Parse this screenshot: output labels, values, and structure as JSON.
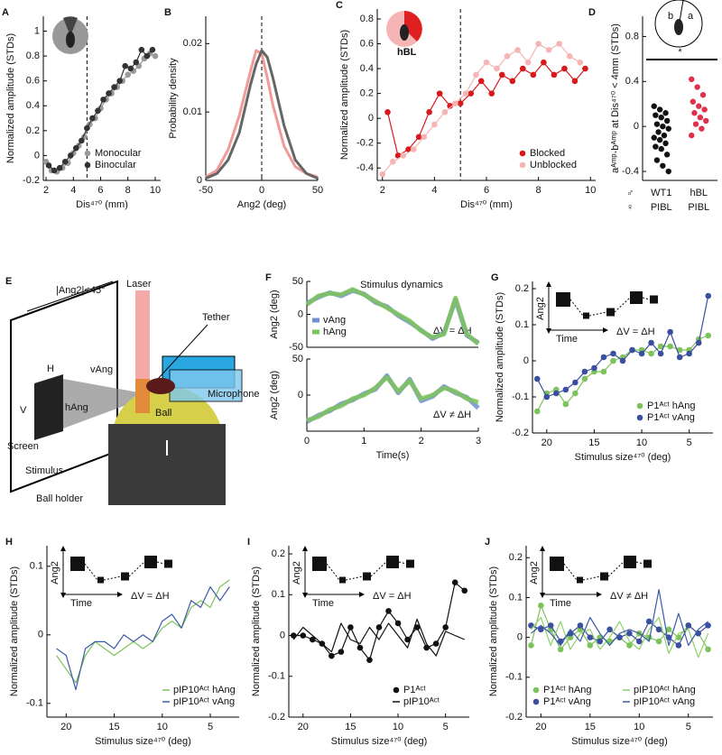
{
  "diagram_e": {
    "panel": "E",
    "angle": "|Ang2|<45°",
    "laser": "Laser",
    "tether": "Tether",
    "h": "H",
    "vang": "vAng",
    "v": "V",
    "hang": "hAng",
    "microphone": "Microphone",
    "screen": "Screen",
    "stimulus": "Stimulus",
    "ball": "Ball",
    "ball_holder": "Ball holder"
  },
  "chart_data": [
    {
      "type": "line",
      "panel": "A",
      "xlabel": "Dis⁴⁷⁰ (mm)",
      "ylabel": "Normalized amplitude (STDs)",
      "xlim": [
        1.8,
        10.4
      ],
      "ylim": [
        -0.2,
        1.12
      ],
      "xticks": [
        2,
        4,
        6,
        8,
        10
      ],
      "yticks": [
        -0.2,
        0,
        0.2,
        0.4,
        0.6,
        0.8,
        1
      ],
      "vline": 5,
      "legend": "lower right",
      "series": [
        {
          "name": "Monocular",
          "color": "#9a9a9a",
          "markers": true,
          "x": [
            2,
            2.4,
            2.8,
            3.2,
            3.6,
            4,
            4.4,
            4.8,
            5.2,
            5.6,
            6,
            6.4,
            6.8,
            7.2,
            7.6,
            8,
            8.4,
            8.8,
            9.2,
            9.6,
            10
          ],
          "values": [
            -0.05,
            -0.12,
            -0.13,
            -0.1,
            -0.06,
            0.02,
            0.08,
            0.15,
            0.25,
            0.3,
            0.38,
            0.45,
            0.5,
            0.55,
            0.6,
            0.65,
            0.68,
            0.72,
            0.78,
            0.82,
            0.8
          ]
        },
        {
          "name": "Binocular",
          "color": "#333333",
          "markers": true,
          "x": [
            2.2,
            2.6,
            3,
            3.4,
            3.8,
            4.2,
            4.6,
            5,
            5.4,
            5.8,
            6.2,
            6.6,
            7,
            7.4,
            7.8,
            8.2,
            8.6,
            9,
            9.4,
            9.8
          ],
          "values": [
            -0.08,
            -0.12,
            -0.1,
            -0.05,
            0,
            0.06,
            0.12,
            0.22,
            0.3,
            0.36,
            0.45,
            0.5,
            0.55,
            0.6,
            0.72,
            0.7,
            0.75,
            0.85,
            0.8,
            0.85
          ]
        }
      ]
    },
    {
      "type": "density",
      "panel": "B",
      "xlabel": "Ang2 (deg)",
      "ylabel": "Probability density",
      "xlim": [
        -50,
        50
      ],
      "ylim": [
        0,
        0.024
      ],
      "xticks": [
        -50,
        0,
        50
      ],
      "yticks": [
        0,
        0.01,
        0.02
      ],
      "vline": 0,
      "x": [
        -50,
        -40,
        -30,
        -20,
        -10,
        -5,
        0,
        5,
        10,
        20,
        30,
        40,
        50
      ],
      "series": [
        {
          "color": "#f09a9a",
          "values": [
            0.0005,
            0.0015,
            0.0045,
            0.0095,
            0.016,
            0.019,
            0.0185,
            0.015,
            0.011,
            0.005,
            0.002,
            0.001,
            0.0005
          ]
        },
        {
          "color": "#666666",
          "values": [
            0.0003,
            0.001,
            0.003,
            0.007,
            0.014,
            0.017,
            0.019,
            0.018,
            0.015,
            0.008,
            0.003,
            0.001,
            0.0003
          ]
        }
      ]
    },
    {
      "type": "line",
      "panel": "C",
      "xlabel": "Dis⁴⁷⁰ (mm)",
      "ylabel": "Normalized amplitude (STDs)",
      "xlim": [
        1.8,
        10.2
      ],
      "ylim": [
        -0.5,
        0.88
      ],
      "xticks": [
        2,
        4,
        6,
        8,
        10
      ],
      "yticks": [
        -0.4,
        -0.2,
        0,
        0.2,
        0.4,
        0.6,
        0.8
      ],
      "vline": 5,
      "legend": "lower right",
      "icon_labels": [
        "hBL"
      ],
      "series": [
        {
          "name": "Blocked",
          "color": "#d7191c",
          "markers": true,
          "x": [
            2.2,
            2.6,
            3,
            3.4,
            3.8,
            4.2,
            4.6,
            5,
            5.4,
            5.8,
            6.2,
            6.6,
            7,
            7.4,
            7.8,
            8.2,
            8.6,
            9,
            9.4,
            9.8
          ],
          "values": [
            0.05,
            -0.3,
            -0.25,
            -0.15,
            0.05,
            0.2,
            0.1,
            0.12,
            0.2,
            0.3,
            0.2,
            0.35,
            0.3,
            0.4,
            0.35,
            0.45,
            0.35,
            0.4,
            0.3,
            0.4
          ]
        },
        {
          "name": "Unblocked",
          "color": "#f5b5b5",
          "markers": true,
          "x": [
            2,
            2.4,
            2.8,
            3.2,
            3.6,
            4,
            4.4,
            4.8,
            5.2,
            5.6,
            6,
            6.4,
            6.8,
            7.2,
            7.6,
            8,
            8.4,
            8.8,
            9.2,
            9.6
          ],
          "values": [
            -0.45,
            -0.35,
            -0.3,
            -0.25,
            -0.15,
            -0.05,
            0.05,
            0.12,
            0.2,
            0.35,
            0.45,
            0.4,
            0.5,
            0.55,
            0.45,
            0.6,
            0.55,
            0.6,
            0.5,
            0.45
          ]
        }
      ]
    },
    {
      "type": "strip",
      "panel": "D",
      "ylabel": "aᴬᵐᵖ-bᴬᵐᵖ at Dis⁴⁷⁰ < 4mm (STDs)",
      "ylim": [
        -0.48,
        0.98
      ],
      "yticks": [
        -0.4,
        0,
        0.4,
        0.8
      ],
      "sig": "*",
      "sex_labels": [
        "♂",
        "♀"
      ],
      "icon_labels": [
        "b",
        "a"
      ],
      "groups": [
        {
          "name": "WT1",
          "sub": "PIBL",
          "color": "#111111",
          "values": [
            0.18,
            0.15,
            0.12,
            0.1,
            0.08,
            0.05,
            0.02,
            0,
            -0.02,
            -0.05,
            -0.08,
            -0.1,
            -0.12,
            -0.15,
            -0.18,
            -0.2,
            -0.25,
            -0.3,
            -0.35,
            -0.4
          ]
        },
        {
          "name": "hBL",
          "sub": "PIBL",
          "color": "#e0304a",
          "values": [
            0.42,
            0.35,
            0.28,
            0.22,
            0.18,
            0.15,
            0.12,
            0.08,
            0.05,
            0.02,
            -0.02,
            -0.08
          ]
        }
      ]
    },
    {
      "type": "band",
      "panel": "F",
      "title": "Stimulus dynamics",
      "note": "ΔV = ΔH",
      "ylabel": "Ang2 (deg)",
      "xlim": [
        0,
        3
      ],
      "ylim": [
        -50,
        50
      ],
      "yticks": [
        -50,
        0,
        50
      ],
      "legend": "lower left",
      "x": [
        0,
        0.2,
        0.4,
        0.6,
        0.8,
        1,
        1.2,
        1.4,
        1.6,
        1.8,
        2,
        2.2,
        2.4,
        2.6,
        2.8,
        3
      ],
      "series": [
        {
          "name": "vAng",
          "color": "#6f8fcf",
          "values": [
            17,
            26,
            33,
            28,
            36,
            31,
            18,
            12,
            -2,
            -12,
            -24,
            -37,
            -28,
            22,
            -32,
            -43
          ]
        },
        {
          "name": "hAng",
          "color": "#7dc35b",
          "values": [
            15,
            28,
            32,
            30,
            38,
            30,
            20,
            10,
            0,
            -10,
            -25,
            -35,
            -30,
            25,
            -30,
            -45
          ]
        }
      ]
    },
    {
      "type": "band",
      "note": "ΔV ≠ ΔH",
      "xlabel": "Time(s)",
      "ylabel": "Ang2 (deg)",
      "xlim": [
        0,
        3
      ],
      "ylim": [
        -50,
        50
      ],
      "xticks": [
        0,
        1,
        2,
        3
      ],
      "yticks": [
        0,
        50
      ],
      "x": [
        0,
        0.2,
        0.4,
        0.6,
        0.8,
        1,
        1.2,
        1.4,
        1.6,
        1.8,
        2,
        2.2,
        2.4,
        2.6,
        2.8,
        3
      ],
      "series": [
        {
          "color": "#6f8fcf",
          "values": [
            -37,
            -28,
            -22,
            -12,
            -7,
            2,
            8,
            27,
            3,
            22,
            -8,
            -2,
            12,
            3,
            -3,
            -18
          ]
        },
        {
          "color": "#7dc35b",
          "values": [
            -35,
            -30,
            -20,
            -15,
            -5,
            0,
            10,
            25,
            5,
            20,
            -5,
            0,
            10,
            5,
            -5,
            -10
          ]
        }
      ]
    },
    {
      "type": "line",
      "panel": "G",
      "xlabel": "Stimulus size⁴⁷⁰ (deg)",
      "ylabel": "Normalized amplitude (STDs)",
      "xlim": [
        21.5,
        2.5
      ],
      "ylim": [
        -0.2,
        0.22
      ],
      "xticks": [
        20,
        15,
        10,
        5
      ],
      "yticks": [
        -0.2,
        -0.1,
        0,
        0.1,
        0.2
      ],
      "legend": "lower right",
      "inset": {
        "y": "Ang2",
        "x": "Time",
        "eq": "ΔV = ΔH"
      },
      "x": [
        21,
        20,
        19,
        18,
        17,
        16,
        15,
        14,
        13,
        12,
        11,
        10,
        9,
        8,
        7,
        6,
        5,
        4,
        3
      ],
      "series": [
        {
          "name": "P1ᴬᶜᵗ hAng",
          "color": "#7dc35b",
          "markers": true,
          "values": [
            -0.14,
            -0.09,
            -0.08,
            -0.12,
            -0.09,
            -0.05,
            -0.03,
            -0.03,
            0,
            0.01,
            0.03,
            0.03,
            0.02,
            0.04,
            0.04,
            0.03,
            0.03,
            0.06,
            0.07
          ]
        },
        {
          "name": "P1ᴬᶜᵗ vAng",
          "color": "#3b4fa0",
          "markers": true,
          "values": [
            -0.05,
            -0.1,
            -0.09,
            -0.08,
            -0.06,
            -0.03,
            -0.02,
            0.01,
            0.02,
            0,
            0.03,
            0.02,
            0.05,
            0.02,
            0.08,
            0.01,
            0.02,
            0.05,
            0.18
          ]
        }
      ]
    },
    {
      "type": "line",
      "panel": "H",
      "xlabel": "Stimulus size⁴⁷⁰ (deg)",
      "ylabel": "Normalized amplitude (STDs)",
      "xlim": [
        22,
        2
      ],
      "ylim": [
        -0.12,
        0.13
      ],
      "xticks": [
        20,
        15,
        10,
        5
      ],
      "yticks": [
        -0.1,
        0,
        0.1
      ],
      "legend": "lower right",
      "inset": {
        "y": "Ang2",
        "x": "Time",
        "eq": "ΔV = ΔH"
      },
      "x": [
        21,
        20,
        19,
        18,
        17,
        16,
        15,
        14,
        13,
        12,
        11,
        10,
        9,
        8,
        7,
        6,
        5,
        4,
        3
      ],
      "series": [
        {
          "name": "pIP10ᴬᶜᵗ hAng",
          "color": "#7dc35b",
          "values": [
            -0.03,
            -0.05,
            -0.07,
            -0.03,
            -0.01,
            -0.02,
            -0.03,
            -0.02,
            -0.01,
            -0.02,
            -0.01,
            0.01,
            0.02,
            0.01,
            0.04,
            0.05,
            0.04,
            0.07,
            0.08
          ]
        },
        {
          "name": "pIP10ᴬᶜᵗ vAng",
          "color": "#3a5aa8",
          "values": [
            -0.02,
            -0.03,
            -0.08,
            -0.02,
            -0.01,
            -0.01,
            -0.02,
            0,
            -0.01,
            0,
            -0.01,
            0.02,
            0.03,
            0.01,
            0.05,
            0.04,
            0.07,
            0.05,
            0.07
          ]
        }
      ]
    },
    {
      "type": "line",
      "panel": "I",
      "xlabel": "Stimulus size⁴⁷⁰ (deg)",
      "ylabel": "Normalized amplitude (STDs)",
      "xlim": [
        21.5,
        2.5
      ],
      "ylim": [
        -0.2,
        0.22
      ],
      "xticks": [
        20,
        15,
        10,
        5
      ],
      "yticks": [
        -0.2,
        -0.1,
        0,
        0.1,
        0.2
      ],
      "legend": "lower right",
      "inset": {
        "y": "Ang2",
        "x": "Time",
        "eq": "ΔV = ΔH"
      },
      "x": [
        21,
        20,
        19,
        18,
        17,
        16,
        15,
        14,
        13,
        12,
        11,
        10,
        9,
        8,
        7,
        6,
        5,
        4,
        3
      ],
      "series": [
        {
          "name": "P1ᴬᶜᵗ",
          "color": "#111111",
          "markers": true,
          "values": [
            0,
            0,
            -0.01,
            -0.02,
            -0.05,
            -0.04,
            0.02,
            -0.03,
            -0.06,
            0.02,
            0.06,
            0.03,
            -0.01,
            0.02,
            -0.03,
            -0.02,
            0.02,
            0.13,
            0.11
          ]
        },
        {
          "name": "pIP10ᴬᶜᵗ",
          "color": "#111111",
          "values": [
            -0.01,
            0.02,
            0,
            -0.02,
            -0.04,
            0.03,
            -0.01,
            -0.02,
            0.02,
            -0.01,
            0.03,
            0,
            -0.03,
            0.04,
            -0.02,
            -0.05,
            0.01,
            0,
            -0.01
          ]
        }
      ]
    },
    {
      "type": "line",
      "panel": "J",
      "xlabel": "Stimulus size⁴⁷⁰ (deg)",
      "ylabel": "Normalized amplitude (STDs)",
      "xlim": [
        21.5,
        2.5
      ],
      "ylim": [
        -0.2,
        0.23
      ],
      "xticks": [
        20,
        15,
        10,
        5
      ],
      "yticks": [
        -0.2,
        -0.1,
        0,
        0.1,
        0.2
      ],
      "legend": "lower right",
      "inset": {
        "y": "Ang2",
        "x": "Time",
        "eq": "ΔV ≠ ΔH"
      },
      "x": [
        21,
        20,
        19,
        18,
        17,
        16,
        15,
        14,
        13,
        12,
        11,
        10,
        9,
        8,
        7,
        6,
        5,
        4,
        3
      ],
      "series": [
        {
          "name": "P1ᴬᶜᵗ hAng",
          "color": "#7dc35b",
          "markers": true,
          "values": [
            -0.02,
            0.08,
            0.02,
            -0.03,
            0,
            0.02,
            -0.02,
            0,
            -0.01,
            0,
            -0.02,
            0.01,
            0,
            -0.01,
            0.02,
            0,
            0.03,
            0.01,
            -0.03
          ]
        },
        {
          "name": "P1ᴬᶜᵗ vAng",
          "color": "#3b4fa0",
          "markers": true,
          "values": [
            0.03,
            0.02,
            0.03,
            -0.01,
            0.01,
            0.03,
            0,
            -0.01,
            0.02,
            0,
            0.01,
            -0.01,
            0.04,
            0.02,
            0,
            -0.02,
            0.03,
            0.01,
            0.03
          ]
        },
        {
          "name": "pIP10ᴬᶜᵗ hAng",
          "color": "#8fd16a",
          "values": [
            0.02,
            0.05,
            -0.02,
            0.04,
            -0.03,
            0.01,
            0.02,
            -0.03,
            0,
            0.04,
            -0.01,
            -0.03,
            0.02,
            0.05,
            -0.04,
            0.01,
            0.02,
            -0.05,
            0.01
          ]
        },
        {
          "name": "pIP10ᴬᶜᵗ vAng",
          "color": "#3a5aa8",
          "values": [
            0.01,
            0.03,
            0.01,
            -0.02,
            0.02,
            -0.01,
            0.05,
            0.01,
            -0.02,
            0.01,
            0.02,
            0.01,
            -0.01,
            0.12,
            -0.02,
            0.06,
            -0.02,
            0.02,
            0.04
          ]
        }
      ]
    }
  ]
}
